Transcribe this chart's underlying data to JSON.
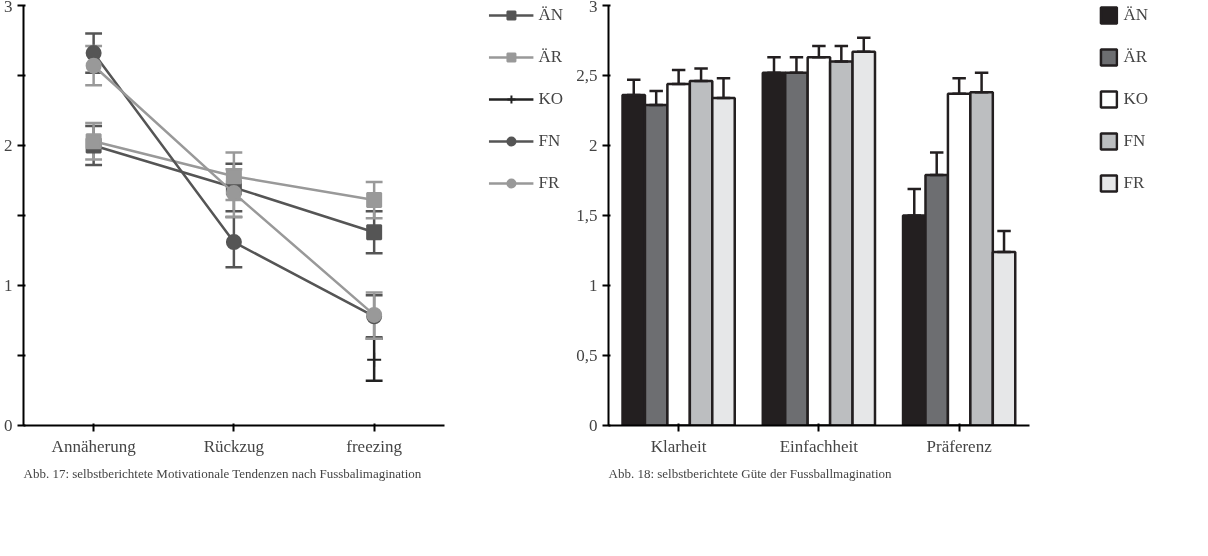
{
  "chart_data": [
    {
      "type": "line",
      "categories": [
        "Annäherung",
        "Rückzug",
        "freezing"
      ],
      "ylim": [
        0,
        3
      ],
      "yticks": [
        0,
        {
          "value": 0.5,
          "label": null
        },
        1,
        {
          "value": 1.5,
          "label": null
        },
        2,
        {
          "value": 2.5,
          "label": null
        },
        3
      ],
      "grid": false,
      "legend": "right",
      "line_style": "solid",
      "annotations": [
        "Abb. 17: selbstberichtete Motivationale Tendenzen nach Fussbalimagination"
      ],
      "series": [
        {
          "name": "ÄN",
          "color": "#555555",
          "marker": "square",
          "values": [
            2.0,
            1.7,
            1.38
          ],
          "errors": [
            0.14,
            0.17,
            0.15
          ]
        },
        {
          "name": "ÄR",
          "color": "#999999",
          "marker": "square",
          "values": [
            2.03,
            1.78,
            1.61
          ],
          "errors": [
            0.13,
            0.17,
            0.13
          ]
        },
        {
          "name": "KO",
          "color": "#222222",
          "marker": "cross",
          "values": [
            null,
            null,
            0.47
          ],
          "errors": [
            null,
            null,
            0.15
          ]
        },
        {
          "name": "FN",
          "color": "#555555",
          "marker": "circle",
          "values": [
            2.66,
            1.31,
            0.78
          ],
          "errors": [
            0.14,
            0.18,
            0.15
          ]
        },
        {
          "name": "FR",
          "color": "#999999",
          "marker": "circle",
          "values": [
            2.57,
            1.66,
            0.79
          ],
          "errors": [
            0.14,
            0.17,
            [
              0.62,
              0.95
            ]
          ]
        }
      ]
    },
    {
      "type": "bar",
      "categories": [
        "Klarheit",
        "Einfachheit",
        "Präferenz"
      ],
      "ylim": [
        0,
        3
      ],
      "yticks": [
        0,
        {
          "value": 0.5,
          "label": "0,5"
        },
        1,
        {
          "value": 1.5,
          "label": "1,5"
        },
        2,
        {
          "value": 2.5,
          "label": "2,5"
        },
        3
      ],
      "grid": false,
      "legend": "right",
      "annotations": [
        "Abb. 18: selbstberichtete Güte der Fussballmagination"
      ],
      "series": [
        {
          "name": "ÄN",
          "color": "#231f20",
          "values": [
            2.36,
            2.52,
            1.5
          ],
          "errors": [
            [
              2.36,
              2.47
            ],
            [
              2.52,
              2.63
            ],
            [
              1.5,
              1.69
            ]
          ]
        },
        {
          "name": "ÄR",
          "color": "#6d6e71",
          "values": [
            2.29,
            2.52,
            1.79
          ],
          "errors": [
            [
              2.29,
              2.39
            ],
            [
              2.52,
              2.63
            ],
            [
              1.79,
              1.95
            ]
          ]
        },
        {
          "name": "KO",
          "color": "#ffffff",
          "values": [
            2.44,
            2.63,
            2.37
          ],
          "errors": [
            [
              2.44,
              2.54
            ],
            [
              2.63,
              2.71
            ],
            [
              2.37,
              2.48
            ]
          ]
        },
        {
          "name": "FN",
          "color": "#bcbec0",
          "values": [
            2.46,
            2.6,
            2.38
          ],
          "errors": [
            [
              2.46,
              2.55
            ],
            [
              2.6,
              2.71
            ],
            [
              2.38,
              2.52
            ]
          ]
        },
        {
          "name": "FR",
          "color": "#e6e7e8",
          "values": [
            2.34,
            2.67,
            1.24
          ],
          "errors": [
            [
              2.34,
              2.48
            ],
            [
              2.67,
              2.77
            ],
            [
              1.24,
              1.39
            ]
          ]
        }
      ]
    }
  ]
}
